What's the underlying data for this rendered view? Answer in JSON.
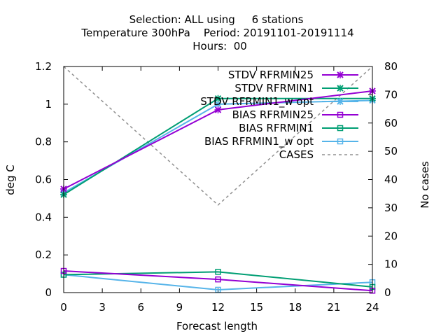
{
  "chart_data": {
    "type": "line",
    "title_lines": [
      "Selection: ALL using     6 stations",
      "Temperature 300hPa    Period: 20191101-20191114",
      "Hours:  00"
    ],
    "xlabel": "Forecast length",
    "ylabel": "deg C",
    "y2label": "No cases",
    "x_ticks": [
      0,
      3,
      6,
      9,
      12,
      15,
      18,
      21,
      24
    ],
    "y_ticks": [
      "0",
      "0.2",
      "0.4",
      "0.6",
      "0.8",
      "1",
      "1.2"
    ],
    "y2_ticks": [
      "0",
      "10",
      "20",
      "30",
      "40",
      "50",
      "60",
      "70",
      "80"
    ],
    "xlim": [
      0,
      24
    ],
    "ylim": [
      0,
      1.2
    ],
    "y2lim": [
      0,
      80
    ],
    "grid": false,
    "legend_position": "top-right",
    "series": [
      {
        "name": "STDV RFRMIN25",
        "x": [
          0,
          12,
          24
        ],
        "y": [
          0.55,
          0.97,
          1.07
        ],
        "color": "#9400d3",
        "marker": "x",
        "axis": "y"
      },
      {
        "name": "STDV RFRMIN1",
        "x": [
          0,
          12,
          24
        ],
        "y": [
          0.52,
          1.03,
          1.03
        ],
        "color": "#009e73",
        "marker": "x",
        "axis": "y"
      },
      {
        "name": "STDV RFRMIN1_w opt",
        "x": [
          0,
          12,
          24
        ],
        "y": [
          0.53,
          1.0,
          1.02
        ],
        "color": "#56b4e9",
        "marker": "x",
        "axis": "y"
      },
      {
        "name": "BIAS RFRMIN25",
        "x": [
          0,
          12,
          24
        ],
        "y": [
          0.115,
          0.07,
          0.01
        ],
        "color": "#9400d3",
        "marker": "square",
        "axis": "y"
      },
      {
        "name": "BIAS RFRMIN1",
        "x": [
          0,
          12,
          24
        ],
        "y": [
          0.095,
          0.11,
          0.03
        ],
        "color": "#009e73",
        "marker": "square",
        "axis": "y"
      },
      {
        "name": "BIAS RFRMIN1_w opt",
        "x": [
          0,
          12,
          24
        ],
        "y": [
          0.095,
          0.015,
          0.055
        ],
        "color": "#56b4e9",
        "marker": "square",
        "axis": "y"
      },
      {
        "name": "CASES",
        "x": [
          0,
          12,
          24
        ],
        "y": [
          80,
          31,
          80
        ],
        "color": "#909090",
        "marker": "none",
        "dashed": true,
        "axis": "y2"
      }
    ]
  }
}
